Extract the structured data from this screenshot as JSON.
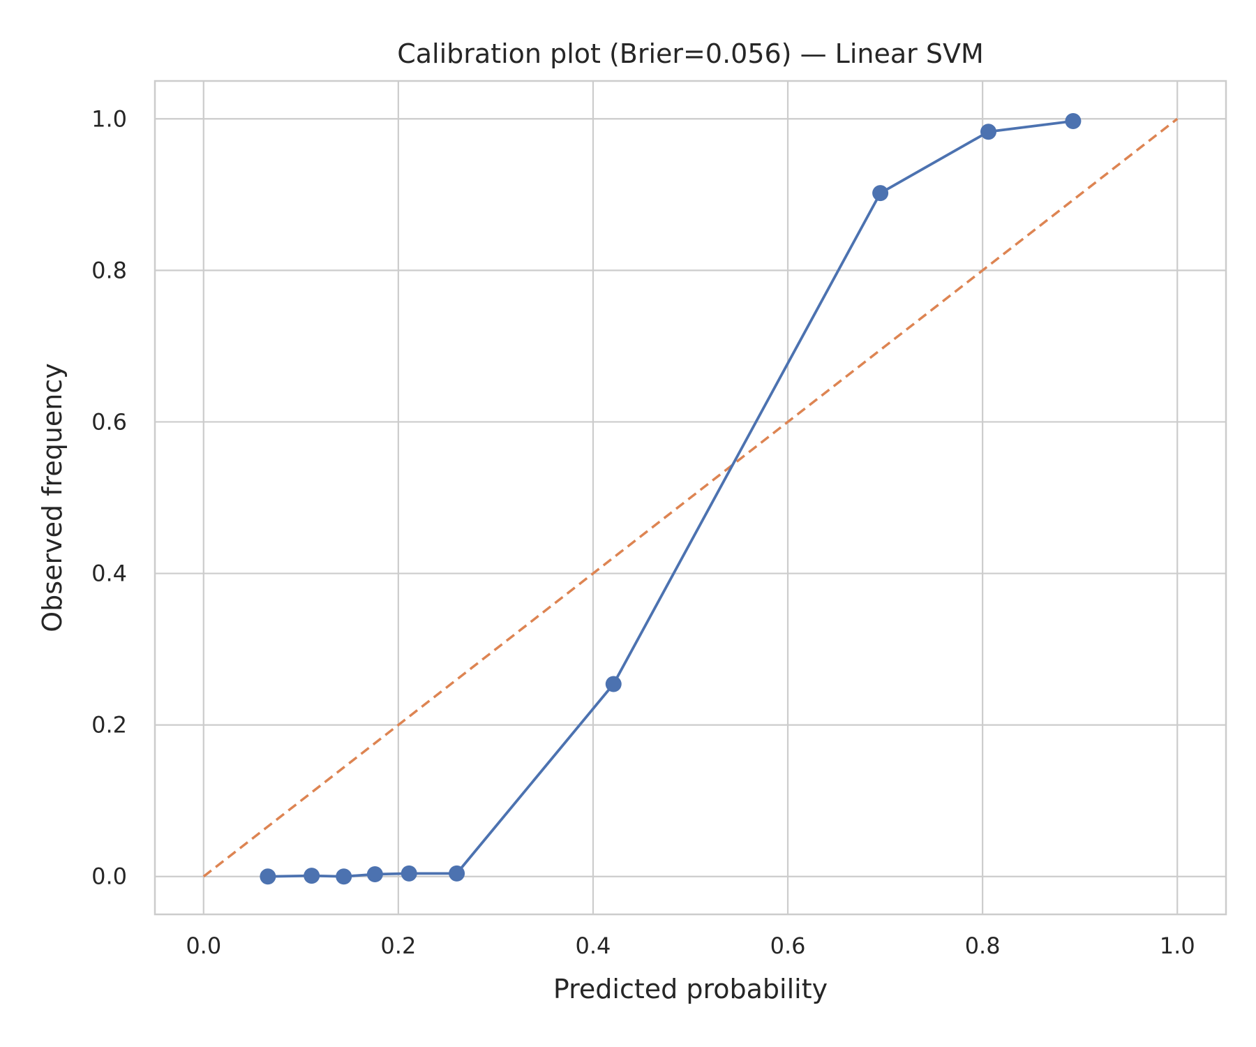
{
  "chart_data": {
    "type": "line",
    "title": "Calibration plot (Brier=0.056) — Linear SVM",
    "xlabel": "Predicted probability",
    "ylabel": "Observed frequency",
    "xlim": [
      -0.05,
      1.05
    ],
    "ylim": [
      -0.05,
      1.05
    ],
    "xticks": [
      0.0,
      0.2,
      0.4,
      0.6,
      0.8,
      1.0
    ],
    "yticks": [
      0.0,
      0.2,
      0.4,
      0.6,
      0.8,
      1.0
    ],
    "xtick_labels": [
      "0.0",
      "0.2",
      "0.4",
      "0.6",
      "0.8",
      "1.0"
    ],
    "ytick_labels": [
      "0.0",
      "0.2",
      "0.4",
      "0.6",
      "0.8",
      "1.0"
    ],
    "grid": true,
    "legend": "none",
    "series": [
      {
        "style": "solid-markers",
        "color": "#4c72b0",
        "x": [
          0.066,
          0.111,
          0.144,
          0.176,
          0.211,
          0.26,
          0.421,
          0.695,
          0.806,
          0.893
        ],
        "y": [
          0.0,
          0.001,
          0.0,
          0.003,
          0.004,
          0.004,
          0.254,
          0.902,
          0.983,
          0.997
        ]
      },
      {
        "style": "dashed",
        "color": "#dd8452",
        "x": [
          0.0,
          1.0
        ],
        "y": [
          0.0,
          1.0
        ]
      }
    ]
  }
}
